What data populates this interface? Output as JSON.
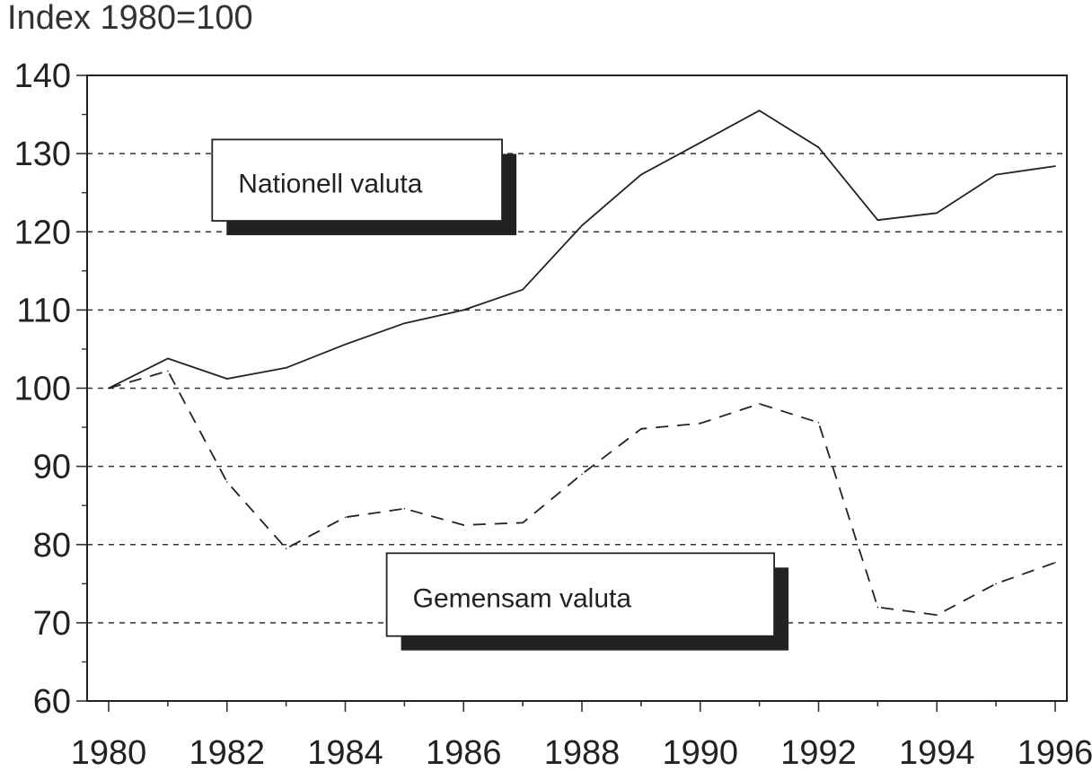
{
  "chart_data": {
    "type": "line",
    "title": "",
    "ylabel": "Index 1980=100",
    "xlabel": "",
    "x": [
      1980,
      1981,
      1982,
      1983,
      1984,
      1985,
      1986,
      1987,
      1988,
      1989,
      1990,
      1991,
      1992,
      1993,
      1994,
      1995,
      1996
    ],
    "xticks": [
      "1980",
      "1982",
      "1984",
      "1986",
      "1988",
      "1990",
      "1992",
      "1994",
      "1996"
    ],
    "xlim": [
      1980,
      1996
    ],
    "ylim": [
      60,
      140
    ],
    "yticks": [
      "60",
      "70",
      "80",
      "90",
      "100",
      "110",
      "120",
      "130",
      "140"
    ],
    "grid": "horizontal dashed",
    "series": [
      {
        "name": "Nationell valuta",
        "style": "solid",
        "color": "#222222",
        "values": [
          100,
          103.8,
          101.2,
          102.6,
          105.6,
          108.3,
          110,
          112.6,
          120.8,
          127.3,
          131.4,
          135.5,
          130.8,
          121.5,
          122.4,
          127.3,
          128.4
        ]
      },
      {
        "name": "Gemensam valuta",
        "style": "dashed",
        "color": "#222222",
        "values": [
          100,
          102.2,
          88,
          79.5,
          83.5,
          84.6,
          82.5,
          82.8,
          89,
          94.8,
          95.5,
          98,
          95.6,
          72,
          71,
          75,
          77.7
        ]
      }
    ]
  }
}
